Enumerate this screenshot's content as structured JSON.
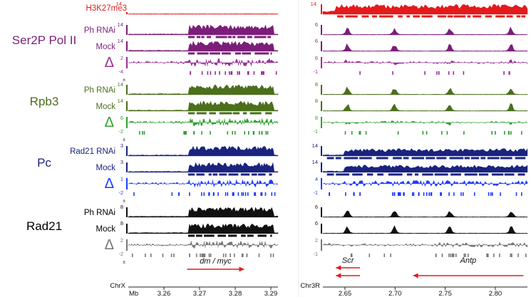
{
  "tracks_meta": {
    "left_mark": "±"
  },
  "groups": [
    {
      "name": "Ser2P Pol II",
      "color": "#7B1E7A",
      "tracks": [
        {
          "label": "Ph RNAi",
          "kind": "signal",
          "color": "#7B1E7A",
          "left_scale": "14",
          "right_scale": "6",
          "left_min": "",
          "right_min": ""
        },
        {
          "label": "Mock",
          "kind": "signal",
          "color": "#7B1E7A",
          "left_scale": "14",
          "right_scale": "6",
          "left_min": "",
          "right_min": ""
        },
        {
          "label": "Δ",
          "kind": "delta",
          "color": "#9B2D9B",
          "left_scale": "2",
          "right_scale": "6",
          "left_min": "-4",
          "right_min": "-1"
        }
      ]
    },
    {
      "name": "Rpb3",
      "color": "#4B6F1C",
      "tracks": [
        {
          "label": "Ph RNAi",
          "kind": "signal",
          "color": "#4B6F1C",
          "left_scale": "14",
          "right_scale": "8",
          "left_min": "",
          "right_min": ""
        },
        {
          "label": "Mock",
          "kind": "signal",
          "color": "#4B6F1C",
          "left_scale": "14",
          "right_scale": "8",
          "left_min": "",
          "right_min": ""
        },
        {
          "label": "Δ",
          "kind": "delta",
          "color": "#2FA12F",
          "left_scale": "6",
          "right_scale": "8",
          "left_min": "-2",
          "right_min": "-1"
        }
      ]
    },
    {
      "name": "Pc",
      "color": "#1A237E",
      "tracks": [
        {
          "label": "Rad21 RNAi",
          "kind": "signal",
          "color": "#1A237E",
          "left_scale": "3",
          "right_scale": "14",
          "left_min": "",
          "right_min": ""
        },
        {
          "label": "Mock",
          "kind": "signal",
          "color": "#1A237E",
          "left_scale": "3",
          "right_scale": "14",
          "left_min": "",
          "right_min": ""
        },
        {
          "label": "Δ",
          "kind": "delta",
          "color": "#1E3CFF",
          "left_scale": "1",
          "right_scale": "4",
          "left_min": "-2",
          "right_min": "-1"
        }
      ]
    },
    {
      "name": "Rad21",
      "color": "#000000",
      "tracks": [
        {
          "label": "Ph RNAi",
          "kind": "signal",
          "color": "#111111",
          "left_scale": "8",
          "right_scale": "6",
          "left_min": "",
          "right_min": ""
        },
        {
          "label": "Mock",
          "kind": "signal",
          "color": "#111111",
          "left_scale": "8",
          "right_scale": "6",
          "left_min": "",
          "right_min": ""
        },
        {
          "label": "Δ",
          "kind": "delta",
          "color": "#777777",
          "left_scale": "2",
          "right_scale": "2",
          "left_min": "-2",
          "right_min": "-1"
        }
      ]
    }
  ],
  "h3k27me3": {
    "label": "H3K27me3",
    "color": "#E41A1C",
    "left_scale": "14",
    "right_scale": "14"
  },
  "left_axis": {
    "chrom": "ChrX",
    "unit": "Mb",
    "min": 3.25,
    "max": 3.292,
    "ticks": [
      "3.26",
      "3.27",
      "3.28",
      "3.29"
    ],
    "tick_values": [
      3.26,
      3.27,
      3.28,
      3.29
    ],
    "genes": [
      {
        "name": "dm / myc",
        "start": 3.2665,
        "end": 3.2825,
        "strand": "+"
      }
    ]
  },
  "right_axis": {
    "chrom": "Chr3R",
    "unit": "",
    "min": 2.628,
    "max": 2.832,
    "ticks": [
      "2.65",
      "2.70",
      "2.75",
      "2.80"
    ],
    "tick_values": [
      2.65,
      2.7,
      2.75,
      2.8
    ],
    "genes": [
      {
        "name": "Scr",
        "start": 2.641,
        "end": 2.665,
        "strand": "-",
        "row": 0
      },
      {
        "name": "",
        "start": 2.641,
        "end": 2.665,
        "strand": "-",
        "row": 1
      },
      {
        "name": "Antp",
        "start": 2.718,
        "end": 2.828,
        "strand": "-",
        "row": 1
      }
    ]
  }
}
